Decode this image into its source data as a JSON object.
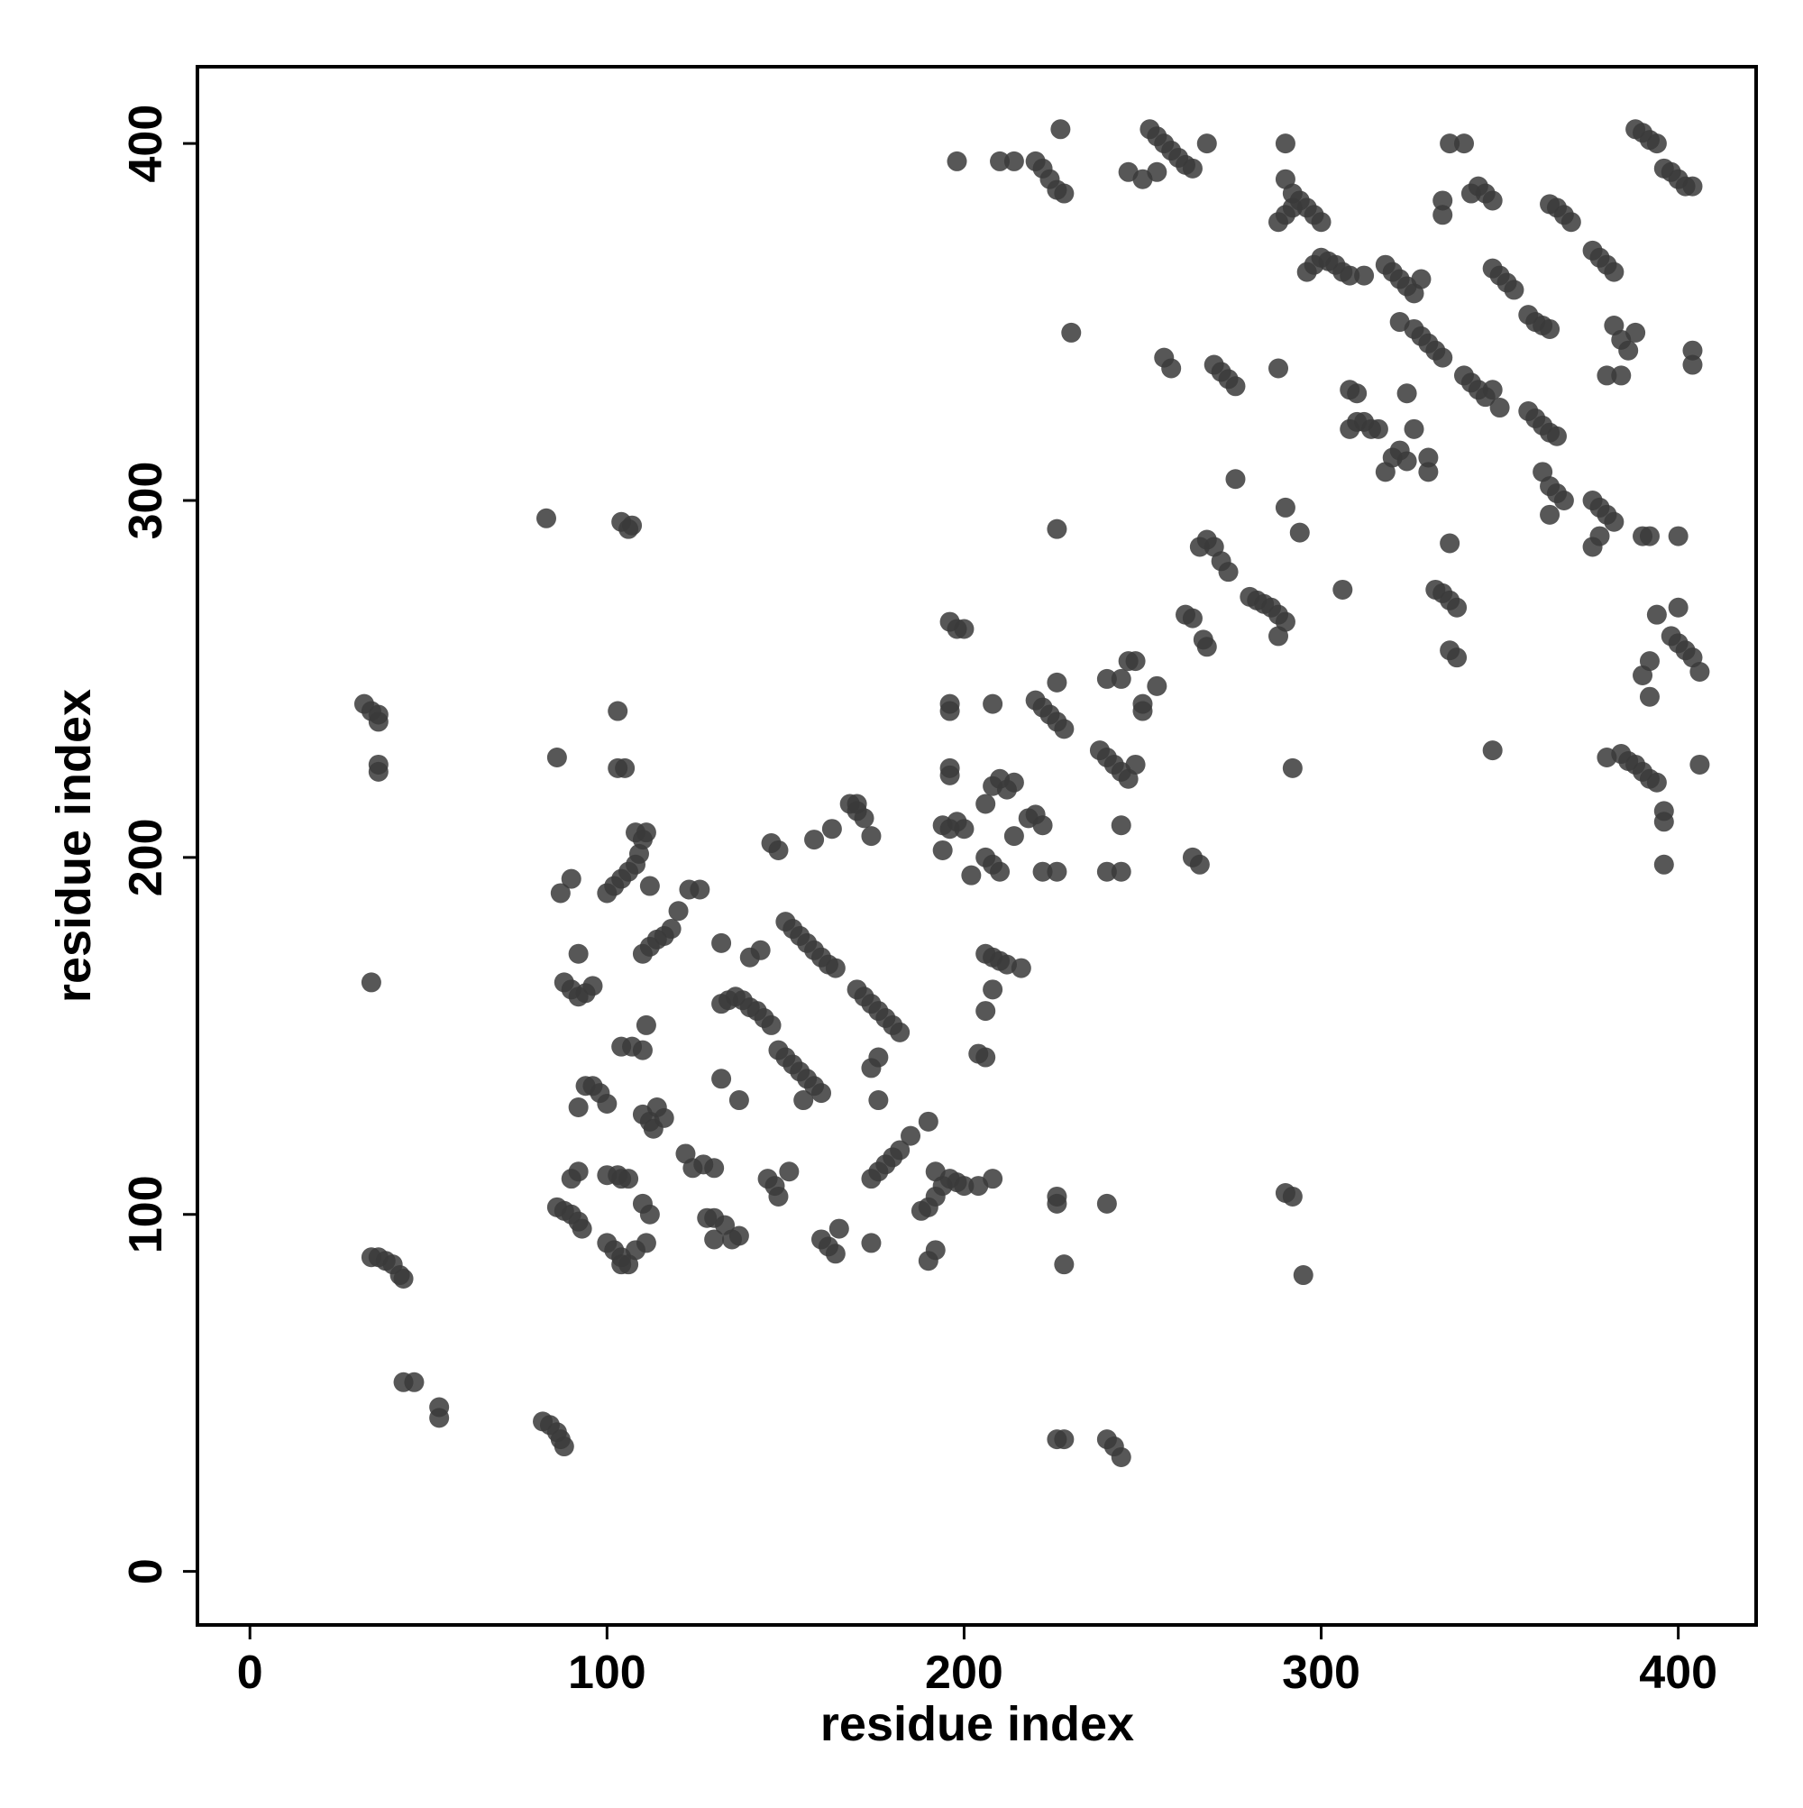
{
  "chart_data": {
    "type": "scatter",
    "x_label": "residue index",
    "y_label": "residue index",
    "xlim": [
      -14.7,
      421.8
    ],
    "ylim": [
      -15,
      421.5
    ],
    "xticks": [
      0,
      100,
      200,
      300,
      400
    ],
    "yticks": [
      0,
      100,
      200,
      300,
      400
    ],
    "color": "#3a3a3a",
    "x": [
      32,
      34,
      36,
      36,
      36,
      36,
      34,
      34,
      36,
      38,
      40,
      42,
      43,
      43,
      46,
      53,
      53,
      82,
      84,
      86,
      87,
      88,
      83,
      86,
      87,
      90,
      92,
      88,
      90,
      92,
      94,
      96,
      94,
      96,
      98,
      100,
      92,
      90,
      92,
      86,
      88,
      90,
      92,
      93,
      100,
      102,
      104,
      106,
      104,
      100,
      103,
      103,
      105,
      103,
      104,
      106,
      107,
      104,
      107,
      110,
      100,
      102,
      104,
      106,
      108,
      109,
      110,
      108,
      111,
      112,
      110,
      112,
      114,
      116,
      118,
      111,
      110,
      112,
      114,
      116,
      113,
      108,
      111,
      112,
      110,
      104,
      106,
      122,
      124,
      127,
      130,
      123,
      126,
      120,
      128,
      130,
      133,
      135,
      130,
      137,
      132,
      132,
      134,
      136,
      138,
      140,
      142,
      144,
      146,
      132,
      137,
      143,
      140,
      145,
      147,
      148,
      151,
      146,
      148,
      150,
      152,
      154,
      156,
      158,
      160,
      162,
      164,
      148,
      150,
      152,
      154,
      156,
      158,
      160,
      155,
      158,
      163,
      160,
      162,
      164,
      165,
      168,
      170,
      172,
      174,
      170,
      170,
      172,
      174,
      176,
      178,
      180,
      182,
      176,
      174,
      176,
      174,
      176,
      178,
      180,
      182,
      174,
      185,
      190,
      190,
      192,
      188,
      190,
      192,
      194,
      196,
      198,
      200,
      204,
      208,
      192,
      196,
      198,
      200,
      196,
      196,
      196,
      196,
      194,
      196,
      200,
      198,
      194,
      198,
      202,
      204,
      206,
      206,
      208,
      210,
      212,
      216,
      206,
      208,
      206,
      208,
      210,
      206,
      208,
      210,
      212,
      214,
      208,
      210,
      214,
      214,
      218,
      220,
      222,
      220,
      222,
      224,
      226,
      228,
      226,
      222,
      226,
      226,
      226,
      226,
      220,
      222,
      224,
      226,
      228,
      227,
      226,
      228,
      228,
      230,
      238,
      240,
      242,
      244,
      246,
      248,
      240,
      244,
      240,
      244,
      244,
      240,
      242,
      244,
      240,
      246,
      248,
      250,
      250,
      246,
      250,
      252,
      254,
      256,
      258,
      260,
      262,
      264,
      268,
      254,
      256,
      258,
      254,
      262,
      264,
      266,
      268,
      270,
      272,
      274,
      267,
      268,
      264,
      266,
      270,
      272,
      274,
      276,
      276,
      280,
      282,
      284,
      286,
      288,
      290,
      288,
      288,
      290,
      290,
      288,
      290,
      292,
      294,
      296,
      298,
      300,
      292,
      290,
      294,
      292,
      290,
      292,
      295,
      296,
      298,
      300,
      302,
      304,
      306,
      308,
      312,
      306,
      308,
      310,
      312,
      314,
      316,
      308,
      310,
      318,
      320,
      322,
      324,
      326,
      328,
      318,
      320,
      322,
      324,
      322,
      326,
      328,
      330,
      332,
      334,
      324,
      326,
      330,
      330,
      334,
      334,
      336,
      340,
      342,
      344,
      346,
      348,
      332,
      334,
      336,
      338,
      336,
      336,
      338,
      340,
      342,
      344,
      346,
      348,
      350,
      348,
      348,
      350,
      352,
      354,
      358,
      360,
      362,
      364,
      358,
      360,
      362,
      364,
      366,
      362,
      364,
      366,
      368,
      364,
      364,
      366,
      368,
      370,
      376,
      378,
      380,
      382,
      376,
      378,
      380,
      382,
      378,
      376,
      380,
      384,
      382,
      384,
      386,
      388,
      380,
      384,
      386,
      388,
      390,
      392,
      394,
      388,
      390,
      392,
      394,
      390,
      392,
      390,
      392,
      392,
      394,
      396,
      398,
      400,
      402,
      404,
      398,
      400,
      402,
      404,
      406,
      400,
      396,
      396,
      396,
      400,
      404,
      404,
      406
    ],
    "y": [
      243,
      241,
      240,
      238,
      226,
      224,
      165,
      88,
      88,
      87,
      86,
      83,
      82,
      53,
      53,
      46,
      43,
      42,
      41,
      39,
      37,
      35,
      295,
      228,
      190,
      194,
      173,
      165,
      163,
      161,
      162,
      164,
      136,
      136,
      134,
      131,
      130,
      110,
      112,
      102,
      101,
      100,
      98,
      96,
      92,
      90,
      88,
      86,
      86,
      111,
      111,
      225,
      225,
      241,
      294,
      292,
      293,
      147,
      147,
      146,
      190,
      192,
      194,
      196,
      198,
      201,
      205,
      207,
      207,
      192,
      173,
      175,
      177,
      178,
      180,
      153,
      128,
      126,
      130,
      127,
      124,
      90,
      92,
      100,
      103,
      110,
      110,
      117,
      113,
      114,
      113,
      191,
      191,
      185,
      99,
      99,
      97,
      93,
      93,
      94,
      176,
      159,
      160,
      161,
      160,
      158,
      157,
      155,
      153,
      138,
      132,
      174,
      172,
      110,
      108,
      105,
      112,
      204,
      202,
      182,
      180,
      178,
      176,
      174,
      172,
      170,
      169,
      146,
      144,
      142,
      140,
      138,
      136,
      134,
      132,
      205,
      208,
      93,
      91,
      89,
      96,
      215,
      213,
      211,
      206,
      215,
      163,
      161,
      159,
      157,
      155,
      153,
      151,
      144,
      141,
      132,
      110,
      112,
      114,
      116,
      118,
      92,
      122,
      126,
      87,
      90,
      101,
      102,
      105,
      108,
      110,
      109,
      108,
      108,
      110,
      112,
      266,
      264,
      264,
      243,
      241,
      225,
      223,
      209,
      208,
      208,
      210,
      202,
      395,
      195,
      145,
      144,
      173,
      172,
      171,
      170,
      169,
      157,
      163,
      200,
      198,
      196,
      215,
      220,
      222,
      219,
      221,
      243,
      395,
      395,
      206,
      211,
      212,
      209,
      244,
      242,
      240,
      238,
      236,
      249,
      196,
      196,
      103,
      105,
      292,
      395,
      393,
      390,
      387,
      386,
      404,
      37,
      37,
      86,
      347,
      230,
      228,
      226,
      224,
      222,
      226,
      250,
      250,
      196,
      196,
      209,
      37,
      35,
      32,
      103,
      255,
      255,
      243,
      241,
      392,
      390,
      404,
      402,
      400,
      398,
      396,
      394,
      393,
      400,
      392,
      340,
      337,
      248,
      268,
      267,
      287,
      289,
      287,
      283,
      280,
      261,
      259,
      200,
      198,
      338,
      336,
      334,
      332,
      306,
      273,
      272,
      271,
      270,
      268,
      266,
      262,
      337,
      400,
      390,
      378,
      380,
      382,
      384,
      382,
      380,
      378,
      386,
      298,
      291,
      225,
      106,
      105,
      83,
      364,
      366,
      368,
      367,
      366,
      364,
      363,
      363,
      275,
      320,
      322,
      322,
      320,
      320,
      331,
      330,
      366,
      364,
      362,
      360,
      358,
      362,
      308,
      312,
      314,
      311,
      350,
      348,
      346,
      344,
      342,
      340,
      330,
      320,
      308,
      312,
      384,
      380,
      400,
      400,
      386,
      388,
      386,
      384,
      275,
      274,
      272,
      270,
      288,
      258,
      256,
      335,
      333,
      331,
      329,
      331,
      326,
      230,
      365,
      363,
      361,
      359,
      352,
      350,
      349,
      348,
      325,
      323,
      321,
      319,
      318,
      308,
      304,
      302,
      300,
      296,
      383,
      382,
      380,
      378,
      370,
      368,
      366,
      364,
      300,
      298,
      296,
      294,
      290,
      287,
      335,
      335,
      349,
      345,
      342,
      347,
      228,
      229,
      227,
      226,
      224,
      222,
      221,
      404,
      403,
      401,
      400,
      290,
      290,
      251,
      245,
      255,
      268,
      393,
      392,
      390,
      388,
      388,
      262,
      260,
      258,
      256,
      252,
      270,
      213,
      210,
      198,
      290,
      342,
      338,
      226
    ]
  }
}
